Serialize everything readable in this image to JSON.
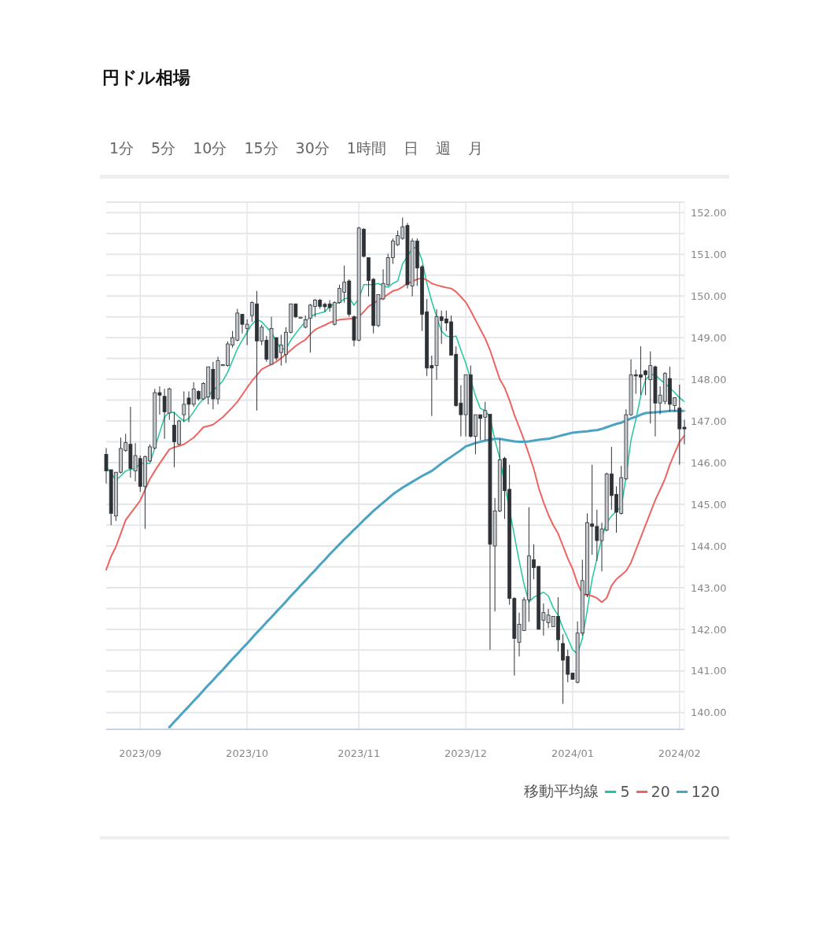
{
  "chart_data": {
    "type": "candlestick",
    "title": "円ドル相場",
    "annotations": [
      "1分",
      "5分",
      "10分",
      "15分",
      "30分",
      "1時間",
      "日",
      "週",
      "月"
    ],
    "categories": [
      null,
      null,
      null,
      null,
      null,
      null,
      null,
      "2023/09",
      null,
      null,
      null,
      null,
      null,
      null,
      null,
      null,
      null,
      null,
      null,
      null,
      null,
      null,
      null,
      null,
      null,
      null,
      null,
      null,
      null,
      "2023/10",
      null,
      null,
      null,
      null,
      null,
      null,
      null,
      null,
      null,
      null,
      null,
      null,
      null,
      null,
      null,
      null,
      null,
      null,
      null,
      null,
      null,
      null,
      "2023/11",
      null,
      null,
      null,
      null,
      null,
      null,
      null,
      null,
      null,
      null,
      null,
      null,
      null,
      null,
      null,
      null,
      null,
      null,
      null,
      null,
      null,
      "2023/12",
      null,
      null,
      null,
      null,
      null,
      null,
      null,
      null,
      null,
      null,
      null,
      null,
      null,
      null,
      null,
      null,
      null,
      null,
      null,
      null,
      null,
      "2024/01",
      null,
      null,
      null,
      null,
      null,
      null,
      null,
      null,
      null,
      null,
      null,
      null,
      null,
      null,
      null,
      null,
      null,
      null,
      null,
      null,
      null,
      "2024/02",
      null
    ],
    "ohlc": [
      [
        146.2,
        146.35,
        145.5,
        145.8
      ],
      [
        145.83,
        145.83,
        144.5,
        144.78
      ],
      [
        144.72,
        145.77,
        144.6,
        145.77
      ],
      [
        145.77,
        146.6,
        145.74,
        146.34
      ],
      [
        146.29,
        146.69,
        146.26,
        146.48
      ],
      [
        146.44,
        147.34,
        145.64,
        145.86
      ],
      [
        145.8,
        146.47,
        145.55,
        146.17
      ],
      [
        146.1,
        146.17,
        145.3,
        145.43
      ],
      [
        145.43,
        146.17,
        144.41,
        146.14
      ],
      [
        146.04,
        146.44,
        146.02,
        146.38
      ],
      [
        146.35,
        147.77,
        146.32,
        147.68
      ],
      [
        147.68,
        147.83,
        147.15,
        147.62
      ],
      [
        147.59,
        147.77,
        146.57,
        147.22
      ],
      [
        147.19,
        147.8,
        147.03,
        147.77
      ],
      [
        146.9,
        147.22,
        145.89,
        146.5
      ],
      [
        146.44,
        147.03,
        146.41,
        147.0
      ],
      [
        147.15,
        147.71,
        146.97,
        147.4
      ],
      [
        147.55,
        147.71,
        146.97,
        147.4
      ],
      [
        147.4,
        147.93,
        147.34,
        147.77
      ],
      [
        147.71,
        147.74,
        147.49,
        147.53
      ],
      [
        147.53,
        147.93,
        147.5,
        147.9
      ],
      [
        147.58,
        148.3,
        147.4,
        148.3
      ],
      [
        148.24,
        148.42,
        147.28,
        147.53
      ],
      [
        147.53,
        148.54,
        147.4,
        148.45
      ],
      [
        148.35,
        148.36,
        148.34,
        148.35
      ],
      [
        148.33,
        148.91,
        148.3,
        148.85
      ],
      [
        148.82,
        149.16,
        148.76,
        149.0
      ],
      [
        148.94,
        149.69,
        148.91,
        149.59
      ],
      [
        149.56,
        149.56,
        149.1,
        149.32
      ],
      [
        149.22,
        149.44,
        148.82,
        149.32
      ],
      [
        149.53,
        149.87,
        149.38,
        149.84
      ],
      [
        149.81,
        150.12,
        147.25,
        148.92
      ],
      [
        148.92,
        149.31,
        148.82,
        149.25
      ],
      [
        148.94,
        149.04,
        148.42,
        148.48
      ],
      [
        148.36,
        149.5,
        148.36,
        149.22
      ],
      [
        149.0,
        149.0,
        148.45,
        148.51
      ],
      [
        148.64,
        149.07,
        148.33,
        148.82
      ],
      [
        148.6,
        149.25,
        148.39,
        149.13
      ],
      [
        149.13,
        149.81,
        149.1,
        149.81
      ],
      [
        149.81,
        149.81,
        149.47,
        149.5
      ],
      [
        149.49,
        149.5,
        149.48,
        149.49
      ],
      [
        149.25,
        149.53,
        149.22,
        149.43
      ],
      [
        149.47,
        149.81,
        148.64,
        149.78
      ],
      [
        149.75,
        149.93,
        149.5,
        149.9
      ],
      [
        149.9,
        149.93,
        149.69,
        149.75
      ],
      [
        149.8,
        149.84,
        149.62,
        149.74
      ],
      [
        149.81,
        149.9,
        149.62,
        149.72
      ],
      [
        149.32,
        149.87,
        149.29,
        149.84
      ],
      [
        149.84,
        150.27,
        149.81,
        150.18
      ],
      [
        150.09,
        150.73,
        149.84,
        150.33
      ],
      [
        150.36,
        150.4,
        149.5,
        149.56
      ],
      [
        149.5,
        149.53,
        148.79,
        148.94
      ],
      [
        148.94,
        151.66,
        148.91,
        151.63
      ],
      [
        151.6,
        151.63,
        150.92,
        150.95
      ],
      [
        150.92,
        150.92,
        149.99,
        150.37
      ],
      [
        150.4,
        150.43,
        149.1,
        149.29
      ],
      [
        149.29,
        150.03,
        149.25,
        150.03
      ],
      [
        149.93,
        150.64,
        149.9,
        150.3
      ],
      [
        150.27,
        151.01,
        150.24,
        150.92
      ],
      [
        150.92,
        151.38,
        150.77,
        151.32
      ],
      [
        151.23,
        151.57,
        151.2,
        151.45
      ],
      [
        151.38,
        151.88,
        151.35,
        151.66
      ],
      [
        151.69,
        151.75,
        150.18,
        150.27
      ],
      [
        150.24,
        151.38,
        149.99,
        151.32
      ],
      [
        151.32,
        151.38,
        150.24,
        150.67
      ],
      [
        150.7,
        150.74,
        149.16,
        149.56
      ],
      [
        149.62,
        149.93,
        148.08,
        148.27
      ],
      [
        148.33,
        148.57,
        147.12,
        148.27
      ],
      [
        148.33,
        149.68,
        147.99,
        149.5
      ],
      [
        149.5,
        149.65,
        148.85,
        149.41
      ],
      [
        149.45,
        149.65,
        149.16,
        149.35
      ],
      [
        149.38,
        149.53,
        148.58,
        148.58
      ],
      [
        148.6,
        148.79,
        147.34,
        147.37
      ],
      [
        147.43,
        147.86,
        146.63,
        147.15
      ],
      [
        147.15,
        148.11,
        146.63,
        148.11
      ],
      [
        148.11,
        148.33,
        146.6,
        146.63
      ],
      [
        146.63,
        147.15,
        146.2,
        147.15
      ],
      [
        147.15,
        147.15,
        146.54,
        147.06
      ],
      [
        147.09,
        147.46,
        146.54,
        147.25
      ],
      [
        147.16,
        147.16,
        141.51,
        144.04
      ],
      [
        144.0,
        145.15,
        142.43,
        144.84
      ],
      [
        144.84,
        146.57,
        144.81,
        146.07
      ],
      [
        146.1,
        146.14,
        144.65,
        145.33
      ],
      [
        145.36,
        145.95,
        142.59,
        142.74
      ],
      [
        142.74,
        142.77,
        140.89,
        141.78
      ],
      [
        141.69,
        142.4,
        141.35,
        142.12
      ],
      [
        141.97,
        142.77,
        141.97,
        142.71
      ],
      [
        142.71,
        144.93,
        142.18,
        143.76
      ],
      [
        143.67,
        144.04,
        143.2,
        143.48
      ],
      [
        143.51,
        143.51,
        142.0,
        142.0
      ],
      [
        142.22,
        142.62,
        141.85,
        142.4
      ],
      [
        142.16,
        142.49,
        142.03,
        142.34
      ],
      [
        142.06,
        142.31,
        142.06,
        142.31
      ],
      [
        142.31,
        142.77,
        141.47,
        141.75
      ],
      [
        141.66,
        141.88,
        140.21,
        141.26
      ],
      [
        141.35,
        141.51,
        140.73,
        140.92
      ],
      [
        140.95,
        140.95,
        140.8,
        140.8
      ],
      [
        140.73,
        142.19,
        140.7,
        141.91
      ],
      [
        141.91,
        143.67,
        141.85,
        143.17
      ],
      [
        142.84,
        144.78,
        142.77,
        144.56
      ],
      [
        144.53,
        145.95,
        143.79,
        144.47
      ],
      [
        144.47,
        144.87,
        143.64,
        144.13
      ],
      [
        144.13,
        144.56,
        143.39,
        144.41
      ],
      [
        144.38,
        145.76,
        144.35,
        145.73
      ],
      [
        145.73,
        146.38,
        144.87,
        145.21
      ],
      [
        145.24,
        145.43,
        144.32,
        144.81
      ],
      [
        144.78,
        145.92,
        144.75,
        145.64
      ],
      [
        145.61,
        147.28,
        145.58,
        147.15
      ],
      [
        147.15,
        148.48,
        147.12,
        148.11
      ],
      [
        148.11,
        148.23,
        147.65,
        148.08
      ],
      [
        148.11,
        148.79,
        147.62,
        148.05
      ],
      [
        148.2,
        148.23,
        147.62,
        148.11
      ],
      [
        147.99,
        148.67,
        146.94,
        148.33
      ],
      [
        148.3,
        148.33,
        146.63,
        147.43
      ],
      [
        147.43,
        147.83,
        147.16,
        147.62
      ],
      [
        147.47,
        148.17,
        147.4,
        148.14
      ],
      [
        148.02,
        148.3,
        147.22,
        147.4
      ],
      [
        147.37,
        147.56,
        147.22,
        147.56
      ],
      [
        147.31,
        147.87,
        145.95,
        146.81
      ],
      [
        146.85,
        147.03,
        146.44,
        146.81
      ]
    ],
    "series": [
      {
        "type": "line",
        "name": "5",
        "color": "#1ec89c",
        "values": [
          145.89,
          145.75,
          145.58,
          145.68,
          145.8,
          145.84,
          145.86,
          145.98,
          145.98,
          145.98,
          146.35,
          146.72,
          147.09,
          147.22,
          147.2,
          147.09,
          147.0,
          147.06,
          147.22,
          147.4,
          147.53,
          147.59,
          147.74,
          147.83,
          147.96,
          148.17,
          148.45,
          148.73,
          148.94,
          149.13,
          149.32,
          149.44,
          149.38,
          149.25,
          149.13,
          148.91,
          148.73,
          148.73,
          148.94,
          149.1,
          149.25,
          149.38,
          149.5,
          149.56,
          149.59,
          149.62,
          149.75,
          149.81,
          149.84,
          149.93,
          149.96,
          149.78,
          149.93,
          150.27,
          150.27,
          150.27,
          150.3,
          150.24,
          150.21,
          150.3,
          150.36,
          150.77,
          null,
          151.14,
          151.17,
          150.86,
          150.3,
          149.87,
          149.5,
          149.16,
          149.04,
          149.01,
          149.04,
          148.7,
          148.39,
          null,
          147.6,
          147.3,
          147.25,
          147.09,
          146.54,
          146.11,
          null,
          null,
          144.25,
          143.64,
          143.08,
          142.65,
          142.77,
          142.83,
          142.89,
          142.8,
          142.52,
          142.34,
          142.03,
          141.78,
          141.51,
          141.41,
          141.78,
          142.46,
          143.2,
          143.7,
          144.19,
          144.56,
          144.72,
          144.84,
          144.93,
          145.67,
          146.54,
          147.03,
          147.59,
          147.99,
          148.11,
          148.11,
          147.99,
          147.9,
          147.8,
          147.68,
          147.56,
          147.46
        ]
      },
      {
        "type": "line",
        "name": "20",
        "color": "#ee6460",
        "values": [
          143.43,
          143.75,
          143.98,
          144.3,
          144.62,
          144.78,
          144.93,
          145.09,
          145.35,
          145.61,
          145.8,
          145.98,
          146.15,
          146.32,
          146.37,
          146.4,
          146.44,
          146.52,
          146.6,
          146.72,
          146.85,
          146.88,
          146.91,
          147.0,
          147.09,
          147.21,
          147.33,
          147.46,
          147.63,
          147.8,
          147.96,
          148.1,
          148.24,
          148.3,
          148.36,
          148.42,
          148.51,
          148.6,
          148.7,
          148.8,
          148.88,
          148.95,
          149.08,
          149.19,
          149.25,
          149.3,
          149.36,
          149.4,
          149.43,
          149.44,
          149.45,
          149.46,
          149.5,
          149.62,
          149.75,
          149.82,
          149.9,
          149.96,
          150.04,
          150.12,
          150.15,
          150.22,
          150.3,
          150.35,
          150.4,
          150.43,
          150.38,
          150.3,
          150.26,
          150.23,
          150.2,
          150.18,
          150.1,
          149.98,
          149.85,
          149.65,
          149.42,
          149.2,
          148.98,
          148.7,
          148.35,
          148.0,
          147.8,
          147.5,
          147.15,
          146.85,
          146.54,
          146.2,
          145.85,
          145.4,
          145.05,
          144.75,
          144.5,
          144.3,
          144.0,
          143.7,
          143.45,
          143.1,
          142.85,
          142.82,
          142.8,
          142.75,
          142.65,
          142.75,
          143.05,
          143.2,
          143.3,
          143.4,
          143.6,
          143.9,
          144.2,
          144.5,
          144.8,
          145.1,
          145.35,
          145.61,
          145.95,
          146.23,
          146.5,
          146.65
        ]
      },
      {
        "type": "line",
        "name": "120",
        "color": "#4aa3c2",
        "values": [
          null,
          null,
          null,
          null,
          null,
          null,
          null,
          null,
          null,
          null,
          null,
          null,
          null,
          139.65,
          139.78,
          139.9,
          140.03,
          140.15,
          140.28,
          140.4,
          140.53,
          140.66,
          140.78,
          140.91,
          141.03,
          141.16,
          141.29,
          141.41,
          141.54,
          141.66,
          141.79,
          141.92,
          142.04,
          142.17,
          142.29,
          142.42,
          142.54,
          142.67,
          142.8,
          142.92,
          143.05,
          143.17,
          143.3,
          143.42,
          143.55,
          143.67,
          143.8,
          143.92,
          144.04,
          144.16,
          144.27,
          144.39,
          144.5,
          144.62,
          144.73,
          144.84,
          144.94,
          145.04,
          145.14,
          145.24,
          145.32,
          145.4,
          145.47,
          145.54,
          145.61,
          145.68,
          145.74,
          145.8,
          145.89,
          145.98,
          146.06,
          146.14,
          146.22,
          146.3,
          146.39,
          146.43,
          146.47,
          146.5,
          146.53,
          146.55,
          146.57,
          146.57,
          146.55,
          146.53,
          146.51,
          146.5,
          146.5,
          146.51,
          146.53,
          146.55,
          146.56,
          146.57,
          146.6,
          146.63,
          146.66,
          146.69,
          146.72,
          146.73,
          146.74,
          146.75,
          146.77,
          146.78,
          146.81,
          146.85,
          146.89,
          146.93,
          146.96,
          147.01,
          147.06,
          147.1,
          147.15,
          147.19,
          147.2,
          147.21,
          147.22,
          147.23,
          147.24,
          147.24,
          147.24,
          147.24
        ]
      }
    ],
    "ylim": [
      139.6,
      152.25
    ],
    "yticks": [
      {
        "value": 140,
        "label": "140.00"
      },
      {
        "value": 140.5,
        "label": null
      },
      {
        "value": 141,
        "label": "141.00"
      },
      {
        "value": 141.5,
        "label": null
      },
      {
        "value": 142,
        "label": "142.00"
      },
      {
        "value": 142.5,
        "label": null
      },
      {
        "value": 143,
        "label": "143.00"
      },
      {
        "value": 143.5,
        "label": null
      },
      {
        "value": 144,
        "label": "144.00"
      },
      {
        "value": 144.5,
        "label": null
      },
      {
        "value": 145,
        "label": "145.00"
      },
      {
        "value": 145.5,
        "label": null
      },
      {
        "value": 146,
        "label": "146.00"
      },
      {
        "value": 146.5,
        "label": null
      },
      {
        "value": 147,
        "label": "147.00"
      },
      {
        "value": 147.5,
        "label": null
      },
      {
        "value": 148,
        "label": "148.00"
      },
      {
        "value": 148.5,
        "label": null
      },
      {
        "value": 149,
        "label": "149.00"
      },
      {
        "value": 149.5,
        "label": null
      },
      {
        "value": 150,
        "label": "150.00"
      },
      {
        "value": 150.5,
        "label": null
      },
      {
        "value": 151,
        "label": "151.00"
      },
      {
        "value": 151.5,
        "label": null
      },
      {
        "value": 152,
        "label": "152.00"
      }
    ],
    "grid": true,
    "legend": "bottom right",
    "legend_title": "移動平均線"
  }
}
